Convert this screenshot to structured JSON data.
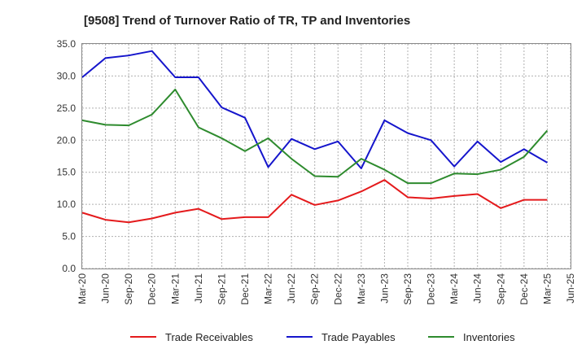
{
  "chart_data": {
    "type": "line",
    "title": "[9508]  Trend of Turnover Ratio of TR, TP and Inventories",
    "xlabel": "",
    "ylabel": "",
    "ylim": [
      0,
      35
    ],
    "y_ticks": [
      "0.0",
      "5.0",
      "10.0",
      "15.0",
      "20.0",
      "25.0",
      "30.0",
      "35.0"
    ],
    "x": [
      "Mar-20",
      "Jun-20",
      "Sep-20",
      "Dec-20",
      "Mar-21",
      "Jun-21",
      "Sep-21",
      "Dec-21",
      "Mar-22",
      "Jun-22",
      "Sep-22",
      "Dec-22",
      "Mar-23",
      "Jun-23",
      "Sep-23",
      "Dec-23",
      "Mar-24",
      "Jun-24",
      "Sep-24",
      "Dec-24",
      "Mar-25",
      "Jun-25"
    ],
    "grid": true,
    "legend_position": "bottom",
    "series": [
      {
        "name": "Trade Receivables",
        "color": "#e41a1c",
        "values": [
          8.7,
          7.6,
          7.2,
          7.8,
          8.7,
          9.3,
          7.7,
          8.0,
          8.0,
          11.5,
          9.9,
          10.6,
          12.0,
          13.8,
          11.1,
          10.9,
          11.3,
          11.6,
          9.4,
          10.7,
          10.7,
          null
        ]
      },
      {
        "name": "Trade Payables",
        "color": "#1515cc",
        "values": [
          29.8,
          32.8,
          33.2,
          33.9,
          29.8,
          29.8,
          25.1,
          23.5,
          15.8,
          20.2,
          18.6,
          19.8,
          15.6,
          23.1,
          21.1,
          20.0,
          15.9,
          19.8,
          16.6,
          18.6,
          16.5,
          null
        ]
      },
      {
        "name": "Inventories",
        "color": "#2e8b2e",
        "values": [
          23.1,
          22.4,
          22.3,
          24.0,
          27.9,
          22.0,
          20.3,
          18.3,
          20.3,
          17.1,
          14.4,
          14.3,
          17.1,
          15.4,
          13.3,
          13.3,
          14.8,
          14.7,
          15.4,
          17.4,
          21.5,
          null
        ]
      }
    ]
  }
}
